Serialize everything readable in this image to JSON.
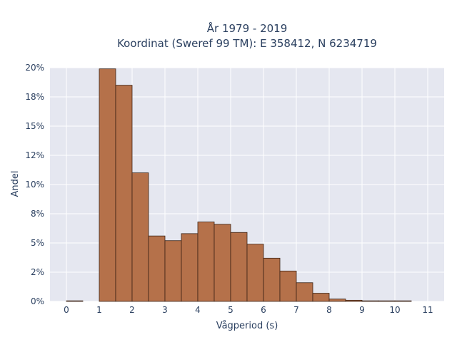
{
  "chart_data": {
    "type": "bar",
    "title": "År 1979 - 2019",
    "subtitle": "Koordinat (Sweref 99 TM): E 358412, N 6234719",
    "xlabel": "Vågperiod (s)",
    "ylabel": "Andel",
    "bin_width": 0.5,
    "bin_starts": [
      0,
      0.5,
      1,
      1.5,
      2,
      2.5,
      3,
      3.5,
      4,
      4.5,
      5,
      5.5,
      6,
      6.5,
      7,
      7.5,
      8,
      8.5,
      9,
      9.5,
      10
    ],
    "values": [
      0.0005,
      0.0,
      0.199,
      0.185,
      0.11,
      0.056,
      0.052,
      0.058,
      0.068,
      0.066,
      0.059,
      0.049,
      0.037,
      0.026,
      0.016,
      0.007,
      0.002,
      0.001,
      0.0005,
      0.0002,
      0.0001
    ],
    "xlim": [
      -0.5,
      11.5
    ],
    "ylim": [
      0,
      0.2
    ],
    "x_ticks": [
      0,
      1,
      2,
      3,
      4,
      5,
      6,
      7,
      8,
      9,
      10,
      11
    ],
    "x_tick_labels": [
      "0",
      "1",
      "2",
      "3",
      "4",
      "5",
      "6",
      "7",
      "8",
      "9",
      "10",
      "11"
    ],
    "y_ticks": [
      0,
      0.025,
      0.05,
      0.075,
      0.1,
      0.125,
      0.15,
      0.175,
      0.2
    ],
    "y_tick_labels": [
      "0%",
      "2%",
      "5%",
      "8%",
      "10%",
      "12%",
      "15%",
      "18%",
      "20%"
    ],
    "grid": true,
    "colors": {
      "bar_fill": "#b5714a",
      "bar_stroke": "#3b2214",
      "plot_bg": "#e5e7f0",
      "grid": "#ffffff"
    }
  }
}
